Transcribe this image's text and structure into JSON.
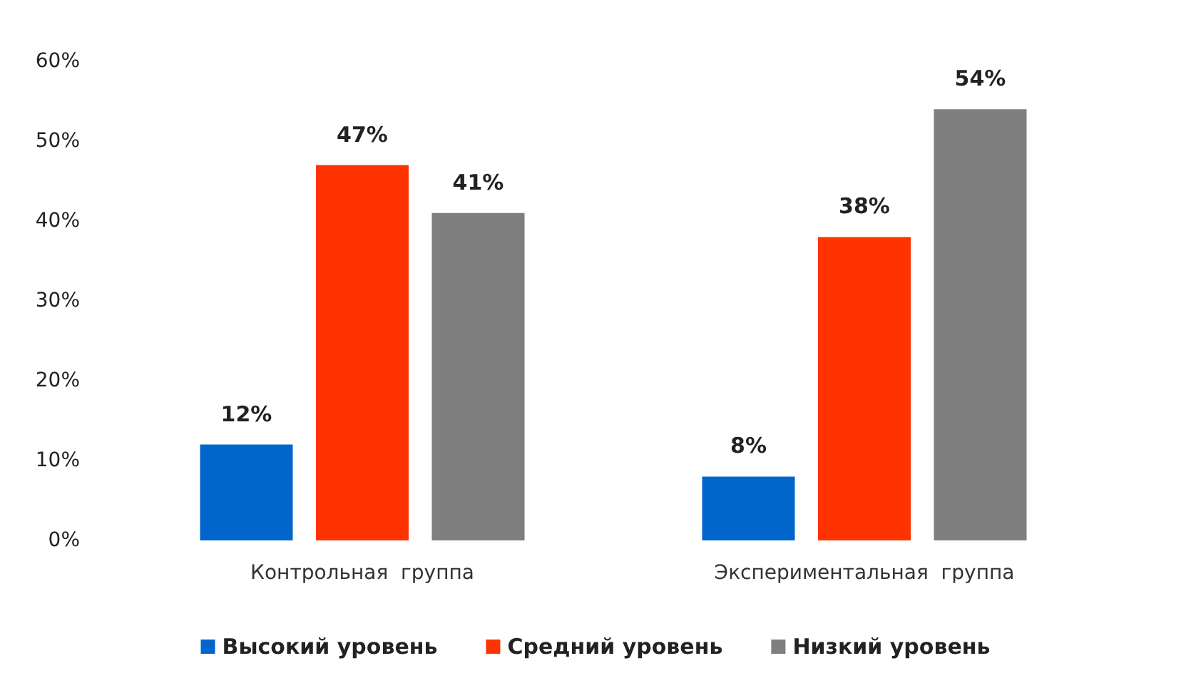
{
  "chart_data": {
    "type": "bar",
    "categories": [
      "Контрольная  группа",
      "Экспериментальная  группа"
    ],
    "series": [
      {
        "name": "Высокий уровень",
        "color": "#0066cc",
        "values": [
          12,
          8
        ],
        "value_labels": [
          "12%",
          "8%"
        ]
      },
      {
        "name": "Средний уровень",
        "color": "#ff3300",
        "values": [
          47,
          38
        ],
        "value_labels": [
          "47%",
          "38%"
        ]
      },
      {
        "name": "Низкий уровень",
        "color": "#7f7f7f",
        "values": [
          41,
          54
        ],
        "value_labels": [
          "41%",
          "54%"
        ]
      }
    ],
    "ylim": [
      0,
      60
    ],
    "yticks": [
      {
        "value": 0,
        "label": "0%"
      },
      {
        "value": 10,
        "label": "10%"
      },
      {
        "value": 20,
        "label": "20%"
      },
      {
        "value": 30,
        "label": "30%"
      },
      {
        "value": 40,
        "label": "40%"
      },
      {
        "value": 50,
        "label": "50%"
      },
      {
        "value": 60,
        "label": "60%"
      }
    ],
    "grid": false,
    "legend": "bottom"
  }
}
